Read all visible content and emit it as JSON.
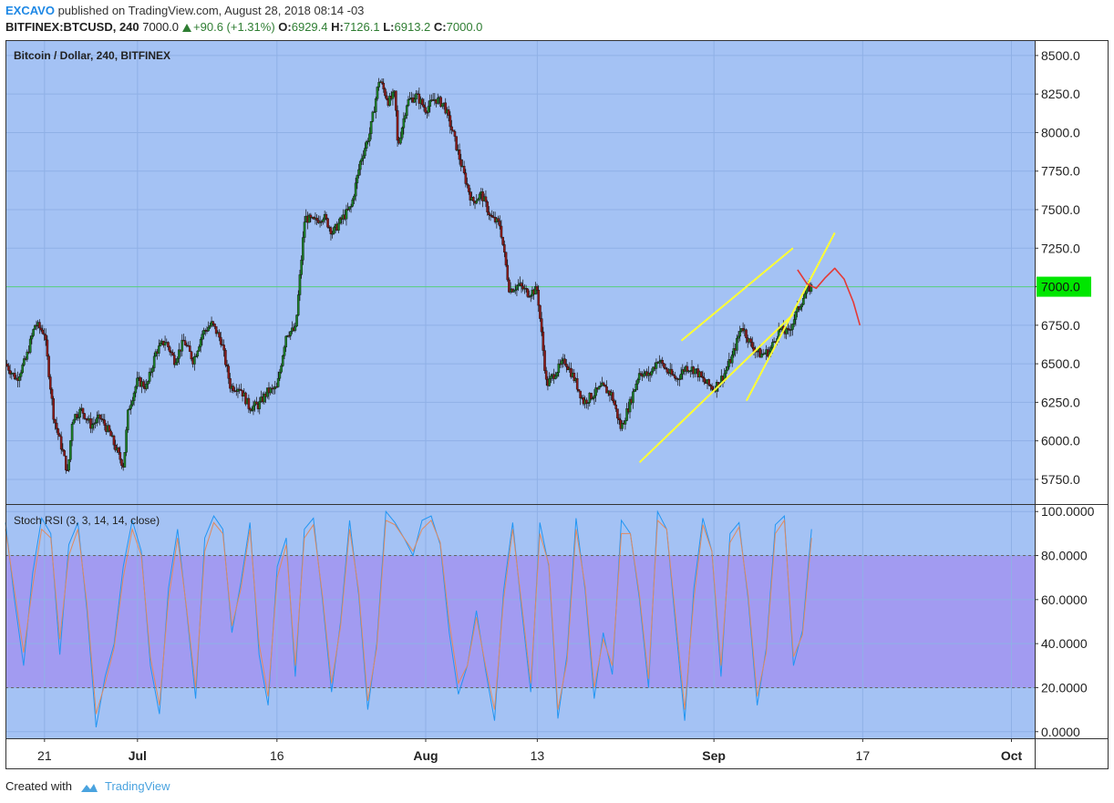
{
  "header": {
    "author": "EXCAVO",
    "published_text": "published on TradingView.com, August 28, 2018 08:14 -03",
    "symbol": "BITFINEX:BTCUSD, 240",
    "last": "7000.0",
    "change": "+90.6 (+1.31%)",
    "o_label": "O:",
    "o": "6929.4",
    "h_label": "H:",
    "h": "7126.1",
    "l_label": "L:",
    "l": "6913.2",
    "c_label": "C:",
    "c": "7000.0"
  },
  "footer": {
    "created_with": "Created with",
    "brand": "TradingView"
  },
  "colors": {
    "pane_bg": "#a4c2f4",
    "rsi_band": "#a29bf1",
    "up_candle": "#1b7f28",
    "down_candle": "#8b1a1a",
    "trendline": "#ffff33",
    "projection": "#e53935",
    "price_tag": "#00e600",
    "stoch_k": "#2196f3",
    "stoch_d": "#e08a5f"
  },
  "chart_data": [
    {
      "type": "candlestick",
      "title": "Bitcoin / Dollar, 240, BITFINEX",
      "ylim": [
        5590,
        8600
      ],
      "y_ticks": [
        "8500.0",
        "8250.0",
        "8000.0",
        "7750.0",
        "7500.0",
        "7250.0",
        "7000.0",
        "6750.0",
        "6500.0",
        "6250.0",
        "6000.0",
        "5750.0"
      ],
      "y_tick_values": [
        8500,
        8250,
        8000,
        7750,
        7500,
        7250,
        7000,
        6750,
        6500,
        6250,
        6000,
        5750
      ],
      "last_price_label": "7000.0",
      "last_price": 7000,
      "x_ticks": [
        "21",
        "Jul",
        "16",
        "Aug",
        "13",
        "Sep",
        "17",
        "Oct"
      ],
      "x_tick_days": [
        21,
        31,
        46,
        62,
        74,
        93,
        109,
        125
      ],
      "x_tick_bold": [
        false,
        true,
        false,
        true,
        false,
        true,
        false,
        true
      ],
      "day_range": [
        16.8,
        127.5
      ],
      "series": [
        {
          "name": "BTCUSD",
          "close_path": [
            [
              16.8,
              6500
            ],
            [
              18,
              6400
            ],
            [
              19,
              6530
            ],
            [
              20,
              6760
            ],
            [
              21,
              6700
            ],
            [
              22,
              6150
            ],
            [
              23,
              5920
            ],
            [
              23.5,
              5780
            ],
            [
              24,
              6150
            ],
            [
              25,
              6200
            ],
            [
              26,
              6100
            ],
            [
              27,
              6150
            ],
            [
              28,
              6050
            ],
            [
              29,
              5900
            ],
            [
              29.5,
              5840
            ],
            [
              30,
              6200
            ],
            [
              31,
              6390
            ],
            [
              32,
              6350
            ],
            [
              33,
              6580
            ],
            [
              34,
              6650
            ],
            [
              35,
              6520
            ],
            [
              36,
              6650
            ],
            [
              37,
              6520
            ],
            [
              38,
              6700
            ],
            [
              39,
              6760
            ],
            [
              40,
              6650
            ],
            [
              41,
              6350
            ],
            [
              42,
              6350
            ],
            [
              43,
              6220
            ],
            [
              44,
              6230
            ],
            [
              45,
              6320
            ],
            [
              46,
              6340
            ],
            [
              47,
              6700
            ],
            [
              48,
              6720
            ],
            [
              49,
              7450
            ],
            [
              50,
              7420
            ],
            [
              51,
              7460
            ],
            [
              52,
              7350
            ],
            [
              53,
              7440
            ],
            [
              54,
              7520
            ],
            [
              55,
              7820
            ],
            [
              56,
              8000
            ],
            [
              57,
              8350
            ],
            [
              58,
              8200
            ],
            [
              58.7,
              8250
            ],
            [
              59,
              7900
            ],
            [
              60,
              8200
            ],
            [
              61,
              8240
            ],
            [
              62,
              8150
            ],
            [
              63,
              8220
            ],
            [
              64,
              8180
            ],
            [
              65,
              7980
            ],
            [
              66,
              7750
            ],
            [
              67,
              7550
            ],
            [
              68,
              7600
            ],
            [
              69,
              7450
            ],
            [
              70,
              7400
            ],
            [
              71,
              6980
            ],
            [
              72,
              7010
            ],
            [
              73,
              6960
            ],
            [
              74,
              6980
            ],
            [
              75,
              6360
            ],
            [
              76,
              6450
            ],
            [
              77,
              6520
            ],
            [
              78,
              6400
            ],
            [
              79,
              6250
            ],
            [
              80,
              6300
            ],
            [
              81,
              6350
            ],
            [
              82,
              6300
            ],
            [
              83,
              6080
            ],
            [
              84,
              6250
            ],
            [
              85,
              6450
            ],
            [
              86,
              6420
            ],
            [
              87,
              6530
            ],
            [
              88,
              6450
            ],
            [
              89,
              6400
            ],
            [
              90,
              6480
            ],
            [
              91,
              6460
            ],
            [
              92,
              6380
            ],
            [
              93,
              6340
            ],
            [
              94,
              6420
            ],
            [
              95,
              6550
            ],
            [
              96,
              6750
            ],
            [
              97,
              6620
            ],
            [
              98,
              6560
            ],
            [
              99,
              6580
            ],
            [
              100,
              6720
            ],
            [
              101,
              6700
            ],
            [
              102,
              6850
            ],
            [
              103,
              6980
            ],
            [
              103.5,
              7000
            ]
          ]
        }
      ],
      "annotations": {
        "channel_top": [
          [
            89.5,
            6650
          ],
          [
            101.5,
            7250
          ]
        ],
        "channel_bottom": [
          [
            85,
            5860
          ],
          [
            101.5,
            6820
          ]
        ],
        "steep_line": [
          [
            96.5,
            6260
          ],
          [
            106,
            7350
          ]
        ],
        "projection": [
          [
            102,
            7110
          ],
          [
            103,
            7020
          ],
          [
            104,
            6990
          ],
          [
            105,
            7060
          ],
          [
            106,
            7120
          ],
          [
            107,
            7050
          ],
          [
            108,
            6900
          ],
          [
            108.7,
            6750
          ]
        ]
      }
    },
    {
      "type": "line",
      "title": "Stoch RSI (3, 3, 14, 14, close)",
      "ylim": [
        -3,
        103
      ],
      "y_ticks": [
        "100.0000",
        "80.0000",
        "60.0000",
        "40.0000",
        "20.0000",
        "0.0000"
      ],
      "y_tick_values": [
        100,
        80,
        60,
        40,
        20,
        0
      ],
      "band": [
        20,
        80
      ],
      "series": [
        {
          "name": "K",
          "values": [
            95,
            60,
            30,
            72,
            97,
            90,
            35,
            85,
            95,
            55,
            2,
            25,
            40,
            75,
            96,
            82,
            30,
            8,
            65,
            92,
            55,
            15,
            88,
            98,
            92,
            45,
            68,
            95,
            35,
            12,
            75,
            88,
            25,
            92,
            97,
            60,
            18,
            50,
            96,
            62,
            10,
            40,
            100,
            95,
            88,
            80,
            96,
            98,
            85,
            45,
            17,
            30,
            55,
            28,
            5,
            64,
            95,
            55,
            18,
            95,
            75,
            6,
            35,
            97,
            64,
            15,
            45,
            26,
            96,
            90,
            60,
            20,
            100,
            92,
            48,
            5,
            65,
            97,
            82,
            25,
            90,
            95,
            60,
            12,
            38,
            94,
            98,
            30,
            46,
            92
          ]
        },
        {
          "name": "D",
          "values": [
            92,
            64,
            36,
            66,
            92,
            88,
            42,
            80,
            92,
            58,
            8,
            22,
            38,
            70,
            92,
            80,
            34,
            12,
            60,
            88,
            56,
            20,
            82,
            95,
            90,
            48,
            65,
            92,
            40,
            16,
            70,
            85,
            30,
            88,
            94,
            62,
            22,
            48,
            92,
            64,
            14,
            38,
            96,
            94,
            88,
            82,
            92,
            96,
            86,
            50,
            22,
            30,
            52,
            30,
            10,
            60,
            92,
            58,
            22,
            90,
            76,
            10,
            32,
            92,
            66,
            20,
            42,
            30,
            90,
            90,
            62,
            24,
            96,
            92,
            52,
            10,
            60,
            94,
            82,
            30,
            86,
            93,
            62,
            16,
            36,
            90,
            96,
            34,
            44,
            88
          ]
        }
      ]
    }
  ]
}
